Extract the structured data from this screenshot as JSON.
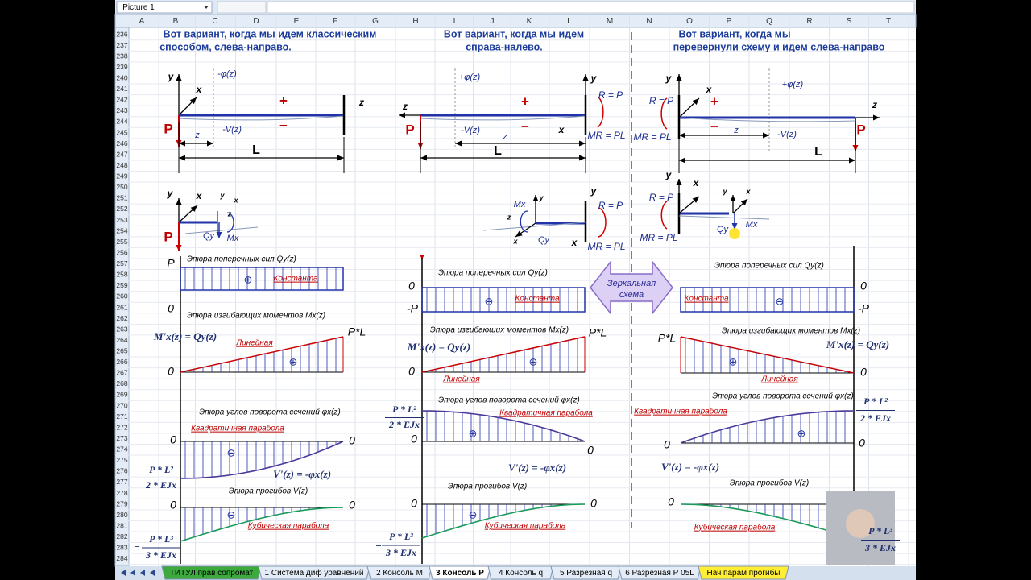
{
  "toolbar": {
    "name_box": "Picture 1"
  },
  "columns": [
    "A",
    "B",
    "C",
    "D",
    "E",
    "F",
    "G",
    "H",
    "I",
    "J",
    "K",
    "L",
    "M",
    "N",
    "O",
    "P",
    "Q",
    "R",
    "S",
    "T"
  ],
  "rows": [
    236,
    237,
    238,
    239,
    240,
    241,
    242,
    243,
    244,
    245,
    246,
    247,
    248,
    249,
    250,
    251,
    252,
    253,
    254,
    255,
    256,
    257,
    258,
    259,
    260,
    261,
    262,
    263,
    264,
    265,
    266,
    267,
    268,
    269,
    270,
    271,
    272,
    273,
    274,
    275,
    276,
    277,
    278,
    279,
    280,
    281,
    282,
    283,
    284
  ],
  "panels": [
    {
      "texts": [
        "Вот вариант, когда мы идем классическим",
        "способом, слева-направо.",
        "y",
        "x",
        "-φ(z)",
        "+",
        "z",
        "P",
        "−",
        "-V(z)",
        "z",
        "L",
        "y",
        "x",
        "y",
        "x",
        "z",
        "P",
        "Qy",
        "Mx",
        "P",
        "Эпюра поперечных сил Qy(z)",
        "⊕",
        "Константа",
        "0",
        "Эпюра изгибающих моментов Mx(z)",
        "M'x(z) = Qy(z)",
        "P*L",
        "Линейная",
        "⊕",
        "0",
        "Эпюра углов поворота сечений φx(z)",
        "Квадратичная парабола",
        "0",
        "0",
        "⊖",
        "V'(z) = -φx(z)",
        "−",
        "P * L²",
        "2 * EJx",
        "Эпюра прогибов V(z)",
        "0",
        "0",
        "⊖",
        "Кубическая парабола",
        "−",
        "P * L³",
        "3 * EJx"
      ]
    },
    {
      "texts": [
        "Вот вариант, когда мы идем",
        "справа-налево.",
        "y",
        "+φ(z)",
        "z",
        "+",
        "R = P",
        "P",
        "-V(z)",
        "−",
        "z",
        "x",
        "MR = PL",
        "L",
        "y",
        "R = P",
        "Mx",
        "y",
        "z",
        "x",
        "Qy",
        "x",
        "MR = PL",
        "Эпюра поперечных сил Qy(z)",
        "0",
        "⊖",
        "Константа",
        "-P",
        "Эпюра изгибающих моментов Mx(z)",
        "M'x(z) = Qy(z)",
        "P*L",
        "⊕",
        "0",
        "Линейная",
        "Эпюра углов поворота сечений φx(z)",
        "Квадратичная парабола",
        "P * L²",
        "2 * EJx",
        "0",
        "⊕",
        "0",
        "V'(z) = -φx(z)",
        "Эпюра прогибов V(z)",
        "0",
        "0",
        "⊖",
        "Кубическая парабола",
        "−",
        "P * L³",
        "3 * EJx"
      ]
    },
    {
      "texts": [
        "Вот вариант, когда мы",
        "перевернули схему и идем слева-направо",
        "y",
        "x",
        "+φ(z)",
        "R = P",
        "+",
        "z",
        "−",
        "-V(z)",
        "z",
        "P",
        "MR = PL",
        "L",
        "y",
        "x",
        "R = P",
        "y",
        "x",
        "Qy",
        "Mx",
        "MR = PL",
        "Эпюра поперечных сил Qy(z)",
        "0",
        "Константа",
        "⊖",
        "-P",
        "Эпюра изгибающих моментов Mx(z)",
        "P*L",
        "M'x(z) = Qy(z)",
        "⊕",
        "0",
        "Линейная",
        "Эпюра углов поворота сечений φx(z)",
        "Квадратичная парабола",
        "P * L²",
        "2 * EJx",
        "⊕",
        "0",
        "0",
        "V'(z) = -φx(z)",
        "Эпюра прогибов V(z)",
        "0",
        "Кубическая парабола",
        "P * L³",
        "3 * EJx"
      ]
    }
  ],
  "mirror_label": [
    "Зеркальная",
    "схема"
  ],
  "sheet_tabs": [
    "ТИТУЛ прав сопромат",
    "1 Система диф уравнений",
    "2 Консоль М",
    "3 Консоль Р",
    "4 Консоль q",
    "5 Разрезная q",
    "6 Разрезная Р 05L",
    "Нач парам прогибы"
  ]
}
